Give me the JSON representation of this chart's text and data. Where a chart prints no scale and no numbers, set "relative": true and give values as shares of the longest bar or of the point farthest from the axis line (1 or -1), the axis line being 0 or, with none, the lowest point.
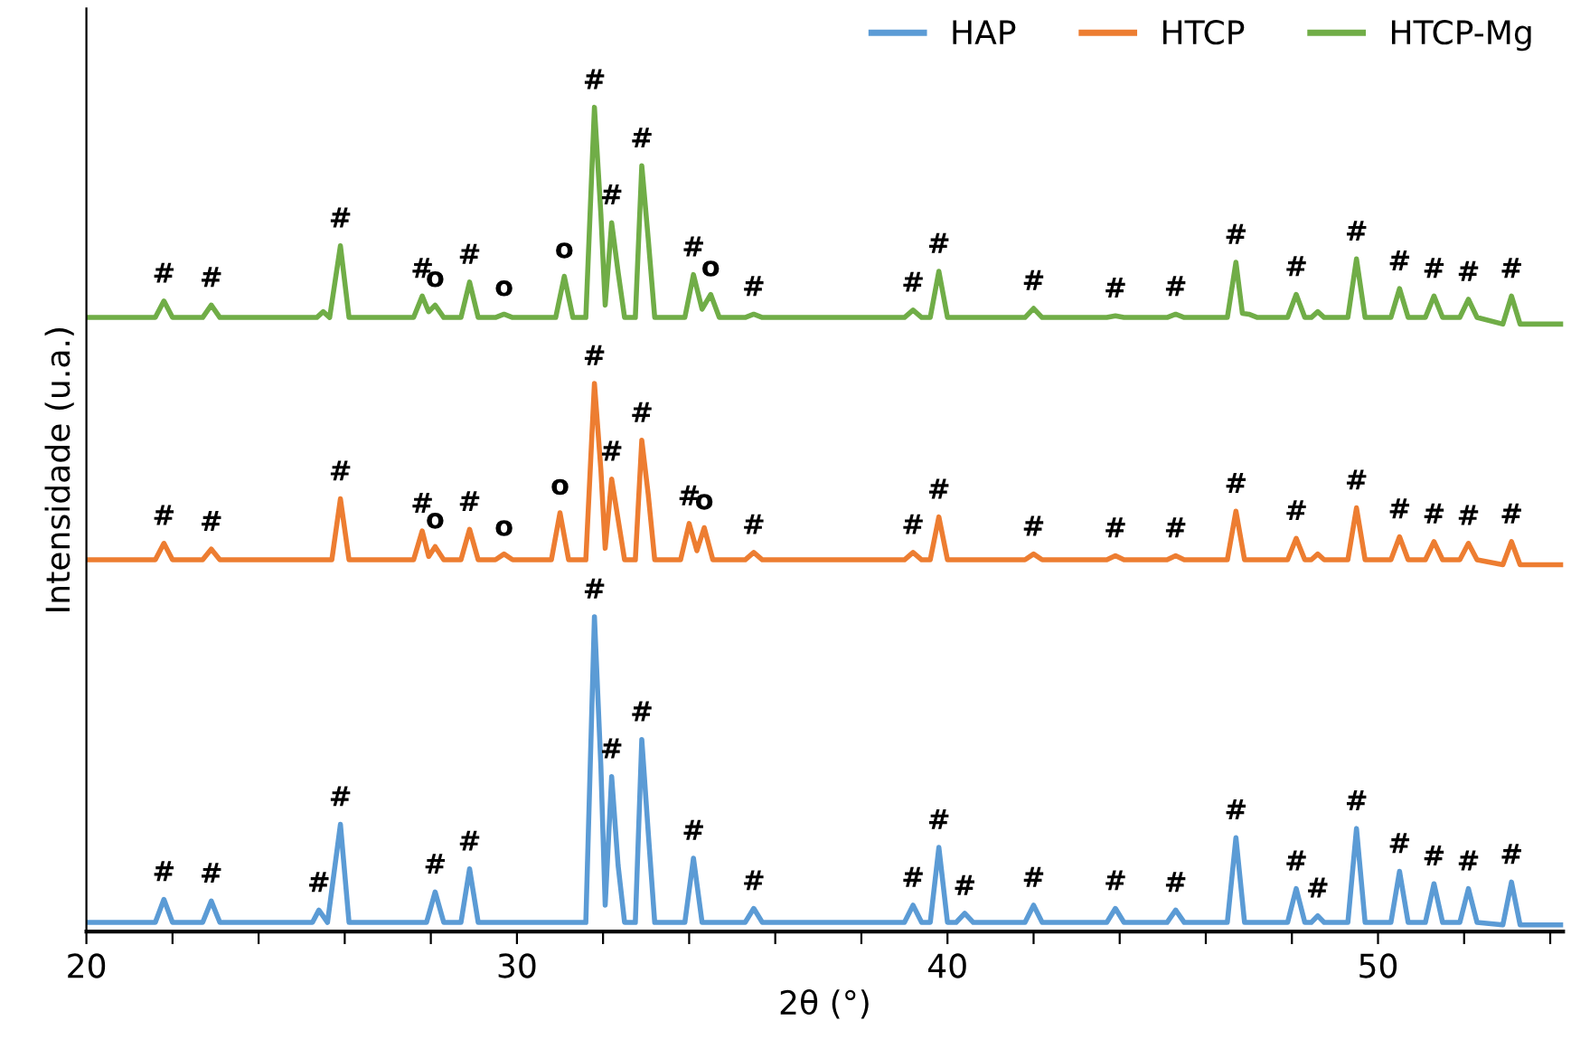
{
  "chart_data": {
    "type": "line",
    "relative": true,
    "xlabel": "2θ (°)",
    "ylabel": "Intensidade (u.a.)",
    "xlim": [
      20,
      54.3
    ],
    "xticks": [
      20,
      {
        "value": 22,
        "label": null
      },
      {
        "value": 24,
        "label": null
      },
      {
        "value": 26,
        "label": null
      },
      {
        "value": 28,
        "label": null
      },
      30,
      {
        "value": 32,
        "label": null
      },
      {
        "value": 34,
        "label": null
      },
      {
        "value": 36,
        "label": null
      },
      {
        "value": 38,
        "label": null
      },
      40,
      {
        "value": 42,
        "label": null
      },
      {
        "value": 44,
        "label": null
      },
      {
        "value": 46,
        "label": null
      },
      {
        "value": 48,
        "label": null
      },
      50,
      {
        "value": 52,
        "label": null
      },
      {
        "value": 54,
        "label": null
      }
    ],
    "grid": false,
    "legend": "top right",
    "marker": "none",
    "line_style": "solid",
    "series": [
      {
        "name": "HAP",
        "color": "#5b9bd5",
        "x": [
          20,
          21.6,
          21.8,
          22.0,
          22.7,
          22.9,
          23.1,
          25.25,
          25.4,
          25.6,
          25.9,
          26.1,
          27.9,
          28.1,
          28.3,
          28.7,
          28.9,
          29.1,
          31.6,
          31.8,
          31.95,
          32.05,
          32.2,
          32.35,
          32.5,
          32.75,
          32.9,
          33.05,
          33.2,
          33.9,
          34.1,
          34.3,
          35.3,
          35.5,
          35.7,
          39.0,
          39.2,
          39.4,
          39.6,
          39.8,
          40.0,
          40.2,
          40.4,
          40.6,
          41.8,
          42.0,
          42.2,
          43.7,
          43.9,
          44.1,
          45.1,
          45.3,
          45.5,
          46.5,
          46.7,
          46.9,
          47.9,
          48.1,
          48.3,
          48.45,
          48.6,
          48.75,
          49.3,
          49.5,
          49.7,
          50.3,
          50.5,
          50.7,
          51.1,
          51.3,
          51.5,
          51.9,
          52.1,
          52.3,
          52.9,
          53.1,
          53.3,
          54.3
        ],
        "values": [
          0.011,
          0.011,
          0.039,
          0.011,
          0.011,
          0.037,
          0.011,
          0.011,
          0.026,
          0.011,
          0.13,
          0.011,
          0.011,
          0.048,
          0.011,
          0.011,
          0.076,
          0.011,
          0.011,
          0.382,
          0.2,
          0.032,
          0.188,
          0.08,
          0.011,
          0.011,
          0.233,
          0.12,
          0.011,
          0.011,
          0.089,
          0.011,
          0.011,
          0.028,
          0.011,
          0.011,
          0.032,
          0.011,
          0.011,
          0.102,
          0.011,
          0.011,
          0.022,
          0.011,
          0.011,
          0.032,
          0.011,
          0.011,
          0.028,
          0.011,
          0.011,
          0.026,
          0.011,
          0.011,
          0.114,
          0.011,
          0.011,
          0.052,
          0.011,
          0.011,
          0.019,
          0.011,
          0.011,
          0.125,
          0.011,
          0.011,
          0.073,
          0.011,
          0.011,
          0.058,
          0.011,
          0.011,
          0.052,
          0.011,
          0.008,
          0.06,
          0.008,
          0.008
        ]
      },
      {
        "name": "HTCP",
        "color": "#ed7d31",
        "x": [
          20,
          21.6,
          21.8,
          22.0,
          22.7,
          22.9,
          23.1,
          25.7,
          25.9,
          26.1,
          27.6,
          27.8,
          27.95,
          28.1,
          28.3,
          28.7,
          28.9,
          29.1,
          29.5,
          29.7,
          29.9,
          30.8,
          31.0,
          31.2,
          31.6,
          31.8,
          31.95,
          32.05,
          32.2,
          32.35,
          32.5,
          32.75,
          32.9,
          33.05,
          33.2,
          33.8,
          34.0,
          34.18,
          34.35,
          34.55,
          35.3,
          35.5,
          35.7,
          39.0,
          39.2,
          39.4,
          39.6,
          39.8,
          40.0,
          41.8,
          42.0,
          42.2,
          43.7,
          43.9,
          44.1,
          45.1,
          45.3,
          45.5,
          46.5,
          46.7,
          46.9,
          47.9,
          48.1,
          48.3,
          48.45,
          48.6,
          48.75,
          49.3,
          49.5,
          49.7,
          50.3,
          50.5,
          50.7,
          51.1,
          51.3,
          51.5,
          51.9,
          52.1,
          52.3,
          52.9,
          53.1,
          53.3,
          54.3
        ],
        "values": [
          0.451,
          0.451,
          0.471,
          0.451,
          0.451,
          0.464,
          0.451,
          0.451,
          0.525,
          0.451,
          0.451,
          0.486,
          0.455,
          0.467,
          0.451,
          0.451,
          0.488,
          0.451,
          0.451,
          0.458,
          0.451,
          0.451,
          0.508,
          0.451,
          0.451,
          0.665,
          0.56,
          0.465,
          0.549,
          0.5,
          0.451,
          0.451,
          0.596,
          0.53,
          0.451,
          0.451,
          0.495,
          0.462,
          0.49,
          0.451,
          0.451,
          0.46,
          0.451,
          0.451,
          0.46,
          0.451,
          0.451,
          0.503,
          0.451,
          0.451,
          0.458,
          0.451,
          0.451,
          0.456,
          0.451,
          0.451,
          0.456,
          0.451,
          0.451,
          0.51,
          0.451,
          0.451,
          0.477,
          0.451,
          0.451,
          0.458,
          0.451,
          0.451,
          0.514,
          0.451,
          0.451,
          0.479,
          0.451,
          0.451,
          0.473,
          0.451,
          0.451,
          0.471,
          0.451,
          0.445,
          0.473,
          0.445,
          0.445
        ]
      },
      {
        "name": "HTCP-Mg",
        "color": "#70ad47",
        "x": [
          20,
          21.6,
          21.8,
          22.0,
          22.7,
          22.9,
          23.1,
          25.35,
          25.5,
          25.65,
          25.9,
          26.1,
          27.6,
          27.8,
          27.95,
          28.1,
          28.3,
          28.7,
          28.9,
          29.1,
          29.5,
          29.7,
          29.9,
          30.9,
          31.1,
          31.3,
          31.6,
          31.8,
          31.95,
          32.05,
          32.2,
          32.35,
          32.5,
          32.75,
          32.9,
          33.05,
          33.2,
          33.9,
          34.1,
          34.3,
          34.5,
          34.7,
          35.3,
          35.5,
          35.7,
          39.0,
          39.2,
          39.4,
          39.6,
          39.8,
          40.0,
          41.8,
          42.0,
          42.2,
          43.7,
          43.9,
          44.1,
          45.1,
          45.3,
          45.5,
          46.5,
          46.7,
          46.85,
          47.0,
          47.2,
          47.9,
          48.1,
          48.3,
          48.45,
          48.6,
          48.75,
          49.3,
          49.5,
          49.7,
          50.3,
          50.5,
          50.7,
          51.1,
          51.3,
          51.5,
          51.9,
          52.1,
          52.3,
          52.9,
          53.1,
          53.3,
          54.3
        ],
        "values": [
          0.745,
          0.745,
          0.765,
          0.745,
          0.745,
          0.76,
          0.745,
          0.745,
          0.752,
          0.745,
          0.832,
          0.745,
          0.745,
          0.771,
          0.752,
          0.76,
          0.745,
          0.745,
          0.788,
          0.745,
          0.745,
          0.749,
          0.745,
          0.745,
          0.795,
          0.745,
          0.745,
          1.0,
          0.87,
          0.76,
          0.86,
          0.8,
          0.745,
          0.745,
          0.929,
          0.84,
          0.745,
          0.745,
          0.797,
          0.755,
          0.773,
          0.745,
          0.745,
          0.749,
          0.745,
          0.745,
          0.754,
          0.745,
          0.745,
          0.801,
          0.745,
          0.745,
          0.756,
          0.745,
          0.745,
          0.747,
          0.745,
          0.745,
          0.749,
          0.745,
          0.745,
          0.812,
          0.75,
          0.749,
          0.745,
          0.745,
          0.773,
          0.745,
          0.745,
          0.752,
          0.745,
          0.745,
          0.816,
          0.745,
          0.745,
          0.78,
          0.745,
          0.745,
          0.771,
          0.745,
          0.745,
          0.767,
          0.745,
          0.737,
          0.771,
          0.737,
          0.737
        ]
      }
    ],
    "annotations": [
      {
        "text": "#",
        "x": 21.8,
        "y": 0.039
      },
      {
        "text": "#",
        "x": 22.9,
        "y": 0.037
      },
      {
        "text": "#",
        "x": 25.4,
        "y": 0.026
      },
      {
        "text": "#",
        "x": 25.9,
        "y": 0.13
      },
      {
        "text": "#",
        "x": 28.1,
        "y": 0.048
      },
      {
        "text": "#",
        "x": 28.9,
        "y": 0.076
      },
      {
        "text": "#",
        "x": 31.8,
        "y": 0.382
      },
      {
        "text": "#",
        "x": 32.2,
        "y": 0.188
      },
      {
        "text": "#",
        "x": 32.9,
        "y": 0.233
      },
      {
        "text": "#",
        "x": 34.1,
        "y": 0.089
      },
      {
        "text": "#",
        "x": 35.5,
        "y": 0.028
      },
      {
        "text": "#",
        "x": 39.2,
        "y": 0.032
      },
      {
        "text": "#",
        "x": 39.8,
        "y": 0.102
      },
      {
        "text": "#",
        "x": 40.4,
        "y": 0.022
      },
      {
        "text": "#",
        "x": 42.0,
        "y": 0.032
      },
      {
        "text": "#",
        "x": 43.9,
        "y": 0.028
      },
      {
        "text": "#",
        "x": 45.3,
        "y": 0.026
      },
      {
        "text": "#",
        "x": 46.7,
        "y": 0.114
      },
      {
        "text": "#",
        "x": 48.1,
        "y": 0.052
      },
      {
        "text": "#",
        "x": 48.6,
        "y": 0.019
      },
      {
        "text": "#",
        "x": 49.5,
        "y": 0.125
      },
      {
        "text": "#",
        "x": 50.5,
        "y": 0.073
      },
      {
        "text": "#",
        "x": 51.3,
        "y": 0.058
      },
      {
        "text": "#",
        "x": 52.1,
        "y": 0.052
      },
      {
        "text": "#",
        "x": 53.1,
        "y": 0.06
      },
      {
        "text": "#",
        "x": 21.8,
        "y": 0.471
      },
      {
        "text": "#",
        "x": 22.9,
        "y": 0.464
      },
      {
        "text": "#",
        "x": 25.9,
        "y": 0.525
      },
      {
        "text": "#",
        "x": 27.8,
        "y": 0.486
      },
      {
        "text": "o",
        "x": 28.1,
        "y": 0.467
      },
      {
        "text": "#",
        "x": 28.9,
        "y": 0.488
      },
      {
        "text": "o",
        "x": 29.7,
        "y": 0.458
      },
      {
        "text": "o",
        "x": 31.0,
        "y": 0.508
      },
      {
        "text": "#",
        "x": 31.8,
        "y": 0.665
      },
      {
        "text": "#",
        "x": 32.2,
        "y": 0.549
      },
      {
        "text": "#",
        "x": 32.9,
        "y": 0.596
      },
      {
        "text": "#",
        "x": 34.0,
        "y": 0.495
      },
      {
        "text": "o",
        "x": 34.35,
        "y": 0.49
      },
      {
        "text": "#",
        "x": 35.5,
        "y": 0.46
      },
      {
        "text": "#",
        "x": 39.2,
        "y": 0.46
      },
      {
        "text": "#",
        "x": 39.8,
        "y": 0.503
      },
      {
        "text": "#",
        "x": 42.0,
        "y": 0.458
      },
      {
        "text": "#",
        "x": 43.9,
        "y": 0.456
      },
      {
        "text": "#",
        "x": 45.3,
        "y": 0.456
      },
      {
        "text": "#",
        "x": 46.7,
        "y": 0.51
      },
      {
        "text": "#",
        "x": 48.1,
        "y": 0.477
      },
      {
        "text": "#",
        "x": 49.5,
        "y": 0.514
      },
      {
        "text": "#",
        "x": 50.5,
        "y": 0.479
      },
      {
        "text": "#",
        "x": 51.3,
        "y": 0.473
      },
      {
        "text": "#",
        "x": 52.1,
        "y": 0.471
      },
      {
        "text": "#",
        "x": 53.1,
        "y": 0.473
      },
      {
        "text": "#",
        "x": 21.8,
        "y": 0.765
      },
      {
        "text": "#",
        "x": 22.9,
        "y": 0.76
      },
      {
        "text": "#",
        "x": 25.9,
        "y": 0.832
      },
      {
        "text": "#",
        "x": 27.8,
        "y": 0.771
      },
      {
        "text": "o",
        "x": 28.1,
        "y": 0.76
      },
      {
        "text": "#",
        "x": 28.9,
        "y": 0.788
      },
      {
        "text": "o",
        "x": 29.7,
        "y": 0.749
      },
      {
        "text": "o",
        "x": 31.1,
        "y": 0.795
      },
      {
        "text": "#",
        "x": 31.8,
        "y": 1.0
      },
      {
        "text": "#",
        "x": 32.2,
        "y": 0.86
      },
      {
        "text": "#",
        "x": 32.9,
        "y": 0.929
      },
      {
        "text": "#",
        "x": 34.1,
        "y": 0.797
      },
      {
        "text": "o",
        "x": 34.5,
        "y": 0.773
      },
      {
        "text": "#",
        "x": 35.5,
        "y": 0.749
      },
      {
        "text": "#",
        "x": 39.2,
        "y": 0.754
      },
      {
        "text": "#",
        "x": 39.8,
        "y": 0.801
      },
      {
        "text": "#",
        "x": 42.0,
        "y": 0.756
      },
      {
        "text": "#",
        "x": 43.9,
        "y": 0.747
      },
      {
        "text": "#",
        "x": 45.3,
        "y": 0.749
      },
      {
        "text": "#",
        "x": 46.7,
        "y": 0.812
      },
      {
        "text": "#",
        "x": 48.1,
        "y": 0.773
      },
      {
        "text": "#",
        "x": 49.5,
        "y": 0.816
      },
      {
        "text": "#",
        "x": 50.5,
        "y": 0.78
      },
      {
        "text": "#",
        "x": 51.3,
        "y": 0.771
      },
      {
        "text": "#",
        "x": 52.1,
        "y": 0.767
      },
      {
        "text": "#",
        "x": 53.1,
        "y": 0.771
      }
    ]
  }
}
